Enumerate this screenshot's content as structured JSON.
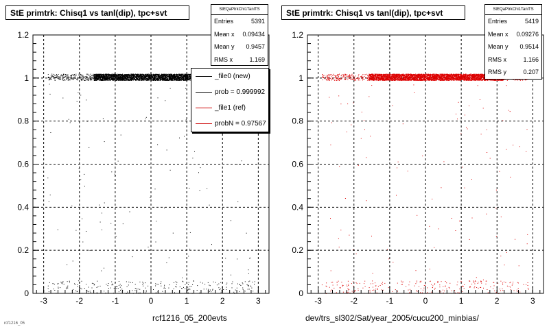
{
  "footer_text": "rcf1216_05",
  "chart_data": [
    {
      "type": "scatter",
      "title": "StE primtrk: Chisq1 vs tanl(dip), tpc+svt",
      "xlabel": "rcf1216_05_200evts",
      "ylabel": "",
      "xlim": [
        -3.3,
        3.3
      ],
      "ylim": [
        0,
        1.2
      ],
      "xticks": [
        "-3",
        "-2",
        "-1",
        "0",
        "1",
        "2",
        "3"
      ],
      "yticks": [
        "0",
        "0.2",
        "0.4",
        "0.6",
        "0.8",
        "1",
        "1.2"
      ],
      "grid": true,
      "marker_color": "#000000",
      "stats": {
        "header": "StEQaPtrkChi1TanlTS",
        "rows": [
          {
            "label": "Entries",
            "value": "5391"
          },
          {
            "label": "Mean x",
            "value": "0.09434"
          },
          {
            "label": "Mean y",
            "value": "0.9457"
          },
          {
            "label": "RMS x",
            "value": "1.169"
          }
        ]
      },
      "legend": {
        "placement": "top-right",
        "entries": [
          {
            "label": "_file0 (new)",
            "color": "#000000"
          },
          {
            "label": "prob = 0.999992",
            "color": "#000000"
          },
          {
            "label": "_file1 (ref)",
            "color": "#cc0000"
          },
          {
            "label": "probN = 0.97567",
            "color": "#cc0000"
          }
        ]
      },
      "distribution": [
        {
          "y_range": [
            0.99,
            1.02
          ],
          "x_range": [
            -2.9,
            2.9
          ],
          "dense_x_range": [
            -1.6,
            2.2
          ],
          "approx_points": 4700
        },
        {
          "y_range": [
            0.0,
            0.06
          ],
          "x_range": [
            -2.9,
            2.9
          ],
          "approx_points": 250
        },
        {
          "y_range": [
            0.06,
            0.99
          ],
          "x_range": [
            -2.9,
            2.9
          ],
          "approx_points": 100
        }
      ]
    },
    {
      "type": "scatter",
      "title": "StE primtrk: Chisq1 vs tanl(dip), tpc+svt",
      "xlabel": "dev/trs_sl302/Sat/year_2005/cucu200_minbias/",
      "ylabel": "",
      "xlim": [
        -3.3,
        3.3
      ],
      "ylim": [
        0,
        1.2
      ],
      "xticks": [
        "-3",
        "-2",
        "-1",
        "0",
        "1",
        "2",
        "3"
      ],
      "yticks": [
        "0",
        "0.2",
        "0.4",
        "0.6",
        "0.8",
        "1",
        "1.2"
      ],
      "grid": true,
      "marker_color": "#dd0000",
      "stats": {
        "header": "StEQaPtrkChi1TanlTS",
        "rows": [
          {
            "label": "Entries",
            "value": "5419"
          },
          {
            "label": "Mean x",
            "value": "0.09276"
          },
          {
            "label": "Mean y",
            "value": "0.9514"
          },
          {
            "label": "RMS x",
            "value": "1.166"
          },
          {
            "label": "RMS y",
            "value": "0.207"
          }
        ]
      },
      "distribution": [
        {
          "y_range": [
            0.99,
            1.02
          ],
          "x_range": [
            -2.9,
            2.9
          ],
          "dense_x_range": [
            -1.6,
            2.2
          ],
          "approx_points": 4750
        },
        {
          "y_range": [
            0.0,
            0.06
          ],
          "x_range": [
            -2.9,
            2.9
          ],
          "approx_points": 250
        },
        {
          "y_range": [
            0.06,
            0.99
          ],
          "x_range": [
            -2.9,
            2.9
          ],
          "approx_points": 100
        }
      ]
    }
  ]
}
